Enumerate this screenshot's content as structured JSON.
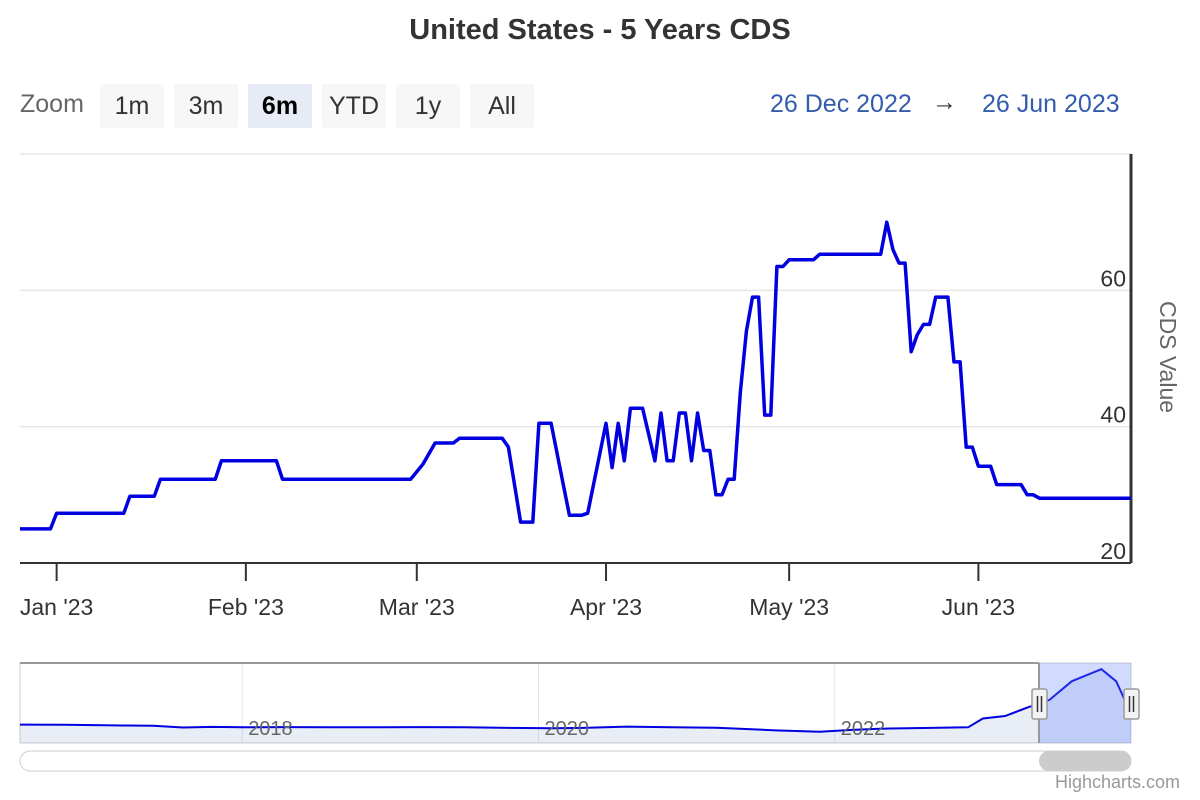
{
  "chart_data": {
    "type": "line",
    "title": "United States - 5 Years CDS",
    "ylabel": "CDS Value",
    "ylim": [
      20,
      80
    ],
    "yticks": [
      20,
      40,
      60
    ],
    "xlim": [
      "2022-12-26",
      "2023-06-26"
    ],
    "xticks": [
      {
        "date": "2023-01-01",
        "label": "Jan '23"
      },
      {
        "date": "2023-02-01",
        "label": "Feb '23"
      },
      {
        "date": "2023-03-01",
        "label": "Mar '23"
      },
      {
        "date": "2023-04-01",
        "label": "Apr '23"
      },
      {
        "date": "2023-05-01",
        "label": "May '23"
      },
      {
        "date": "2023-06-01",
        "label": "Jun '23"
      }
    ],
    "series": [
      {
        "color": "#0000e0",
        "points": [
          [
            "2022-12-26",
            25.0
          ],
          [
            "2022-12-31",
            25.0
          ],
          [
            "2023-01-01",
            27.3
          ],
          [
            "2023-01-12",
            27.3
          ],
          [
            "2023-01-13",
            29.8
          ],
          [
            "2023-01-17",
            29.8
          ],
          [
            "2023-01-18",
            32.3
          ],
          [
            "2023-01-27",
            32.3
          ],
          [
            "2023-01-28",
            35.0
          ],
          [
            "2023-02-06",
            35.0
          ],
          [
            "2023-02-07",
            32.3
          ],
          [
            "2023-02-28",
            32.3
          ],
          [
            "2023-03-02",
            34.5
          ],
          [
            "2023-03-04",
            37.6
          ],
          [
            "2023-03-07",
            37.6
          ],
          [
            "2023-03-08",
            38.3
          ],
          [
            "2023-03-15",
            38.3
          ],
          [
            "2023-03-16",
            37.0
          ],
          [
            "2023-03-18",
            26.0
          ],
          [
            "2023-03-20",
            26.0
          ],
          [
            "2023-03-21",
            40.5
          ],
          [
            "2023-03-23",
            40.5
          ],
          [
            "2023-03-26",
            27.0
          ],
          [
            "2023-03-28",
            27.0
          ],
          [
            "2023-03-29",
            27.3
          ],
          [
            "2023-04-01",
            40.5
          ],
          [
            "2023-04-02",
            34.0
          ],
          [
            "2023-04-03",
            40.5
          ],
          [
            "2023-04-04",
            35.0
          ],
          [
            "2023-04-05",
            42.7
          ],
          [
            "2023-04-07",
            42.7
          ],
          [
            "2023-04-09",
            35.0
          ],
          [
            "2023-04-10",
            42.0
          ],
          [
            "2023-04-11",
            35.0
          ],
          [
            "2023-04-12",
            35.0
          ],
          [
            "2023-04-13",
            42.0
          ],
          [
            "2023-04-14",
            42.0
          ],
          [
            "2023-04-15",
            35.0
          ],
          [
            "2023-04-16",
            42.0
          ],
          [
            "2023-04-17",
            36.5
          ],
          [
            "2023-04-18",
            36.5
          ],
          [
            "2023-04-19",
            30.0
          ],
          [
            "2023-04-20",
            30.0
          ],
          [
            "2023-04-21",
            32.3
          ],
          [
            "2023-04-22",
            32.3
          ],
          [
            "2023-04-23",
            45.0
          ],
          [
            "2023-04-24",
            54.0
          ],
          [
            "2023-04-25",
            59.0
          ],
          [
            "2023-04-26",
            59.0
          ],
          [
            "2023-04-27",
            41.7
          ],
          [
            "2023-04-28",
            41.7
          ],
          [
            "2023-04-29",
            63.5
          ],
          [
            "2023-04-30",
            63.5
          ],
          [
            "2023-05-01",
            64.5
          ],
          [
            "2023-05-05",
            64.5
          ],
          [
            "2023-05-06",
            65.3
          ],
          [
            "2023-05-16",
            65.3
          ],
          [
            "2023-05-17",
            70.0
          ],
          [
            "2023-05-18",
            66.0
          ],
          [
            "2023-05-19",
            64.0
          ],
          [
            "2023-05-20",
            64.0
          ],
          [
            "2023-05-21",
            51.0
          ],
          [
            "2023-05-22",
            53.5
          ],
          [
            "2023-05-23",
            55.0
          ],
          [
            "2023-05-24",
            55.0
          ],
          [
            "2023-05-25",
            59.0
          ],
          [
            "2023-05-27",
            59.0
          ],
          [
            "2023-05-28",
            49.5
          ],
          [
            "2023-05-29",
            49.5
          ],
          [
            "2023-05-30",
            37.0
          ],
          [
            "2023-05-31",
            37.0
          ],
          [
            "2023-06-01",
            34.2
          ],
          [
            "2023-06-03",
            34.2
          ],
          [
            "2023-06-04",
            31.5
          ],
          [
            "2023-06-08",
            31.5
          ],
          [
            "2023-06-09",
            30.0
          ],
          [
            "2023-06-10",
            30.0
          ],
          [
            "2023-06-11",
            29.5
          ],
          [
            "2023-06-26",
            29.5
          ]
        ]
      }
    ]
  },
  "rangeSelector": {
    "zoom_label": "Zoom",
    "buttons": [
      "1m",
      "3m",
      "6m",
      "YTD",
      "1y",
      "All"
    ],
    "selected": "6m",
    "from": "26 Dec 2022",
    "arrow": "→",
    "to": "26 Jun 2023"
  },
  "navigator": {
    "labels": [
      "2018",
      "2020",
      "2022"
    ],
    "points": [
      [
        2016.5,
        19.5
      ],
      [
        2016.8,
        19.3
      ],
      [
        2017.0,
        19.0
      ],
      [
        2017.2,
        18.7
      ],
      [
        2017.4,
        18.5
      ],
      [
        2017.6,
        16.8
      ],
      [
        2017.8,
        17.4
      ],
      [
        2018.0,
        17.0
      ],
      [
        2018.3,
        17.2
      ],
      [
        2018.6,
        17.1
      ],
      [
        2018.9,
        17.0
      ],
      [
        2019.2,
        17.2
      ],
      [
        2019.5,
        17.1
      ],
      [
        2019.8,
        16.5
      ],
      [
        2020.1,
        16.2
      ],
      [
        2020.3,
        16.5
      ],
      [
        2020.6,
        17.7
      ],
      [
        2020.9,
        17.0
      ],
      [
        2021.2,
        16.6
      ],
      [
        2021.4,
        15.5
      ],
      [
        2021.6,
        14.2
      ],
      [
        2021.9,
        13.0
      ],
      [
        2022.1,
        14.6
      ],
      [
        2022.3,
        15.7
      ],
      [
        2022.6,
        16.4
      ],
      [
        2022.9,
        17.0
      ],
      [
        2023.0,
        25.0
      ],
      [
        2023.15,
        27.3
      ],
      [
        2023.3,
        35.0
      ],
      [
        2023.45,
        42.0
      ],
      [
        2023.6,
        59.0
      ],
      [
        2023.7,
        64.5
      ],
      [
        2023.8,
        70.0
      ],
      [
        2023.9,
        59.0
      ],
      [
        2024.0,
        29.5
      ]
    ],
    "labelYears": [
      2018,
      2020,
      2022
    ]
  },
  "credit": "Highcharts.com"
}
